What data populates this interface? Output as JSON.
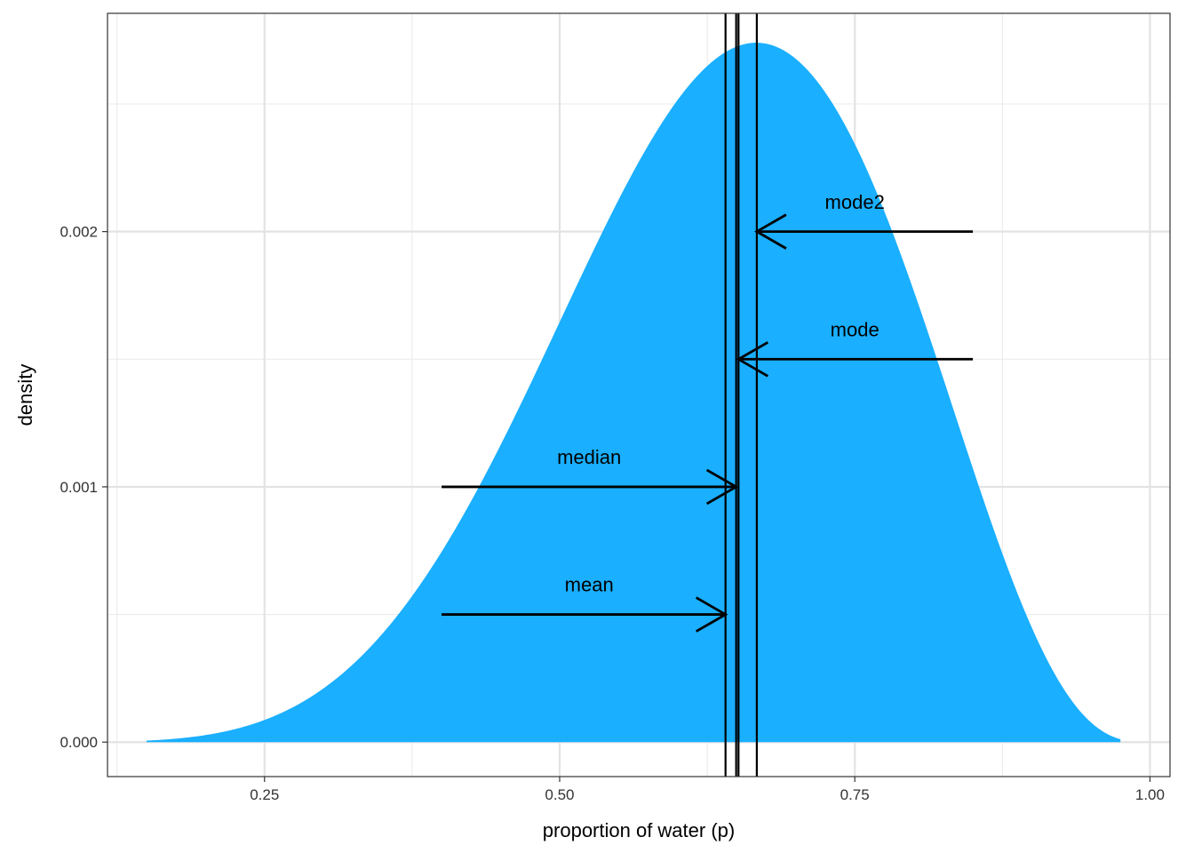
{
  "chart_data": {
    "type": "area",
    "title": "",
    "xlabel": "proportion of water (p)",
    "ylabel": "density",
    "xlim": [
      0.117,
      1.017
    ],
    "ylim": [
      -0.000135,
      0.002855
    ],
    "x_ticks": [
      0.25,
      0.5,
      0.75,
      1.0
    ],
    "x_tick_labels": [
      "0.25",
      "0.50",
      "0.75",
      "1.00"
    ],
    "x_minor_ticks": [
      0.125,
      0.375,
      0.625,
      0.875
    ],
    "y_ticks": [
      0.0,
      0.001,
      0.002
    ],
    "y_tick_labels": [
      "0.000",
      "0.001",
      "0.002"
    ],
    "y_minor_ticks": [
      0.0005,
      0.0015,
      0.0025
    ],
    "grid": true,
    "fill_color": "#1AAFFF",
    "density_curve": {
      "x_range": [
        0.15,
        0.975
      ],
      "shape": "beta",
      "alpha": 7,
      "beta": 4,
      "peak_x": 0.667,
      "peak_y": 0.00274
    },
    "vlines": [
      {
        "name": "mean",
        "x": 0.6405
      },
      {
        "name": "median",
        "x": 0.6495
      },
      {
        "name": "mode",
        "x": 0.6515
      },
      {
        "name": "mode2",
        "x": 0.667
      }
    ],
    "annotations": [
      {
        "label": "mean",
        "x_start": 0.4,
        "x_end": 0.6405,
        "y": 0.0005,
        "label_x": 0.525,
        "label_y": 0.00059
      },
      {
        "label": "median",
        "x_start": 0.4,
        "x_end": 0.6495,
        "y": 0.001,
        "label_x": 0.525,
        "label_y": 0.00109
      },
      {
        "label": "mode",
        "x_start": 0.85,
        "x_end": 0.6515,
        "y": 0.0015,
        "label_x": 0.75,
        "label_y": 0.00159
      },
      {
        "label": "mode2",
        "x_start": 0.85,
        "x_end": 0.667,
        "y": 0.002,
        "label_x": 0.75,
        "label_y": 0.00209
      }
    ]
  }
}
